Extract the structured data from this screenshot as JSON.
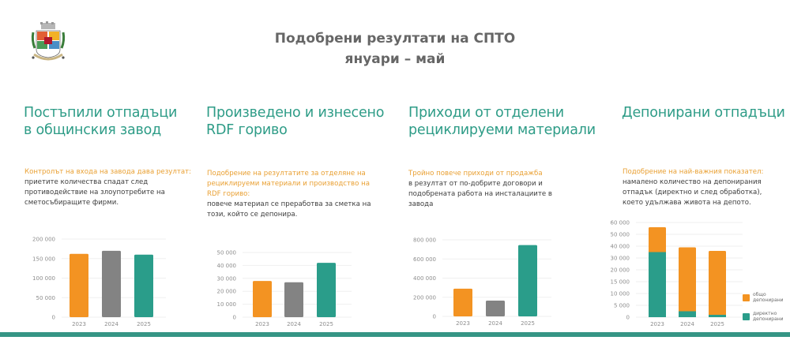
{
  "header": {
    "title_line1": "Подобрени резултати на СПТО",
    "title_line2": "януари – май",
    "logo_icon": "sofia-coat-of-arms-icon"
  },
  "colors": {
    "accent_teal": "#2e9c87",
    "bar_orange": "#f39322",
    "bar_gray": "#838383",
    "bar_teal": "#2a9d8a",
    "highlight_orange": "#e9a033",
    "bottom_bar": "#359585"
  },
  "sections": [
    {
      "title_line1": "Постъпили отпадъци",
      "title_line2": "в общинския завод",
      "highlight": "Контролът на входа на завода дава резултат:",
      "text": " приетите количества спадат след противодействие на злоупотребите на сметосъбиращите фирми."
    },
    {
      "title_line1": "Произведено и изнесено",
      "title_line2": "RDF гориво",
      "highlight": "Подобрение на резултатите за отделяне на рециклируеми материали и производство на RDF гориво:",
      "text": "повече материал се преработва за сметка на този, който се депонира."
    },
    {
      "title_line1": "Приходи от отделени",
      "title_line2": "рециклируеми материали",
      "highlight": "Тройно повече приходи от продажба",
      "text": "в резултат от по-добрите договори и подобрената работа на инсталациите в завода"
    },
    {
      "title_line1": "Депонирани отпадъци",
      "title_line2": "",
      "highlight": "Подобрение на най-важния показател:",
      "text": "намалено количество на депонирания отпадък (директно и след обработка), което удължава живота на депото."
    }
  ],
  "chart_data": [
    {
      "type": "bar",
      "title": "Постъпили отпадъци в общинския завод",
      "categories": [
        "2023",
        "2024",
        "2025"
      ],
      "values": [
        162000,
        170000,
        160000
      ],
      "colors": [
        "#f39322",
        "#838383",
        "#2a9d8a"
      ],
      "yticks": [
        0,
        50000,
        100000,
        150000,
        200000
      ],
      "ytick_labels": [
        "0",
        "50 000",
        "100 000",
        "150 000",
        "200 000"
      ],
      "ylim": [
        0,
        200000
      ],
      "grid": true,
      "xlabel": "",
      "ylabel": ""
    },
    {
      "type": "bar",
      "title": "Произведено и изнесено RDF гориво",
      "categories": [
        "2023",
        "2024",
        "2025"
      ],
      "values": [
        28000,
        27000,
        42000
      ],
      "colors": [
        "#f39322",
        "#838383",
        "#2a9d8a"
      ],
      "yticks": [
        0,
        10000,
        20000,
        30000,
        40000,
        50000
      ],
      "ytick_labels": [
        "0",
        "10 000",
        "20 000",
        "30 000",
        "40 000",
        "50 000"
      ],
      "ylim": [
        0,
        50000
      ],
      "grid": true,
      "xlabel": "",
      "ylabel": ""
    },
    {
      "type": "bar",
      "title": "Приходи от отделени рециклируеми материали",
      "categories": [
        "2023",
        "2024",
        "2025"
      ],
      "values": [
        290000,
        165000,
        745000
      ],
      "colors": [
        "#f39322",
        "#838383",
        "#2a9d8a"
      ],
      "yticks": [
        0,
        200000,
        400000,
        600000,
        800000
      ],
      "ytick_labels": [
        "0",
        "200 000",
        "400 000",
        "600 000",
        "800 000"
      ],
      "ylim": [
        0,
        800000
      ],
      "grid": true,
      "xlabel": "",
      "ylabel": ""
    },
    {
      "type": "bar",
      "stacked": true,
      "title": "Депонирани отпадъци",
      "categories": [
        "2023",
        "2024",
        "2025"
      ],
      "series": [
        {
          "name": "директно депонирани",
          "color": "#2a9d8a",
          "values": [
            35000,
            2500,
            1000
          ]
        },
        {
          "name": "общо депонирани",
          "color": "#f39322",
          "values": [
            56000,
            39000,
            36000
          ],
          "note": "total bar height"
        }
      ],
      "ytick_labels": [
        "0",
        "5 000",
        "10 000",
        "15 000",
        "20 000",
        "30 000",
        "40 000",
        "50 000",
        "60 000"
      ],
      "ylim": [
        0,
        60000
      ],
      "grid": true,
      "legend_position": "right",
      "legend": [
        "общо депонирани",
        "директно депонирани"
      ],
      "xlabel": "",
      "ylabel": ""
    }
  ]
}
